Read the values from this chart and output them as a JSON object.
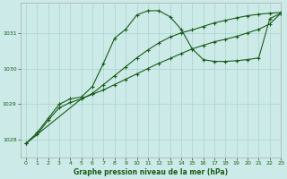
{
  "background_color": "#cceae7",
  "grid_color": "#aad4d0",
  "line_color": "#1a5c1a",
  "text_color": "#1a5c1a",
  "xlabel": "Graphe pression niveau de la mer (hPa)",
  "xlim": [
    -0.5,
    23
  ],
  "ylim": [
    1027.5,
    1031.85
  ],
  "yticks": [
    1028,
    1029,
    1030,
    1031
  ],
  "xticks": [
    0,
    1,
    2,
    3,
    4,
    5,
    6,
    7,
    8,
    9,
    10,
    11,
    12,
    13,
    14,
    15,
    16,
    17,
    18,
    19,
    20,
    21,
    22,
    23
  ],
  "series_linear_x": [
    0,
    1,
    2,
    3,
    4,
    5,
    6,
    7,
    8,
    9,
    10,
    11,
    12,
    13,
    14,
    15,
    16,
    17,
    18,
    19,
    20,
    21,
    22,
    23
  ],
  "series_linear_y": [
    1027.9,
    1028.15,
    1028.55,
    1028.9,
    1029.05,
    1029.15,
    1029.28,
    1029.4,
    1029.55,
    1029.7,
    1029.85,
    1030.0,
    1030.15,
    1030.28,
    1030.42,
    1030.55,
    1030.65,
    1030.75,
    1030.82,
    1030.9,
    1031.0,
    1031.1,
    1031.25,
    1031.55
  ],
  "series_wave_x": [
    0,
    1,
    2,
    3,
    4,
    5,
    6,
    7,
    8,
    9,
    10,
    11,
    12,
    13,
    14,
    15,
    16,
    17,
    18,
    19,
    20,
    21,
    22,
    23
  ],
  "series_wave_y": [
    1027.9,
    1028.2,
    1028.6,
    1029.0,
    1029.15,
    1029.2,
    1029.5,
    1030.15,
    1030.85,
    1031.1,
    1031.5,
    1031.62,
    1031.62,
    1031.45,
    1031.1,
    1030.55,
    1030.25,
    1030.2,
    1030.2,
    1030.22,
    1030.25,
    1030.3,
    1031.4,
    1031.55
  ],
  "series_smooth_x": [
    0,
    5,
    6,
    7,
    8,
    9,
    10,
    11,
    12,
    13,
    14,
    15,
    16,
    17,
    18,
    19,
    20,
    21,
    22,
    23
  ],
  "series_smooth_y": [
    1027.9,
    1029.15,
    1029.3,
    1029.55,
    1029.8,
    1030.05,
    1030.3,
    1030.52,
    1030.72,
    1030.88,
    1031.0,
    1031.08,
    1031.18,
    1031.28,
    1031.35,
    1031.42,
    1031.48,
    1031.52,
    1031.55,
    1031.57
  ]
}
